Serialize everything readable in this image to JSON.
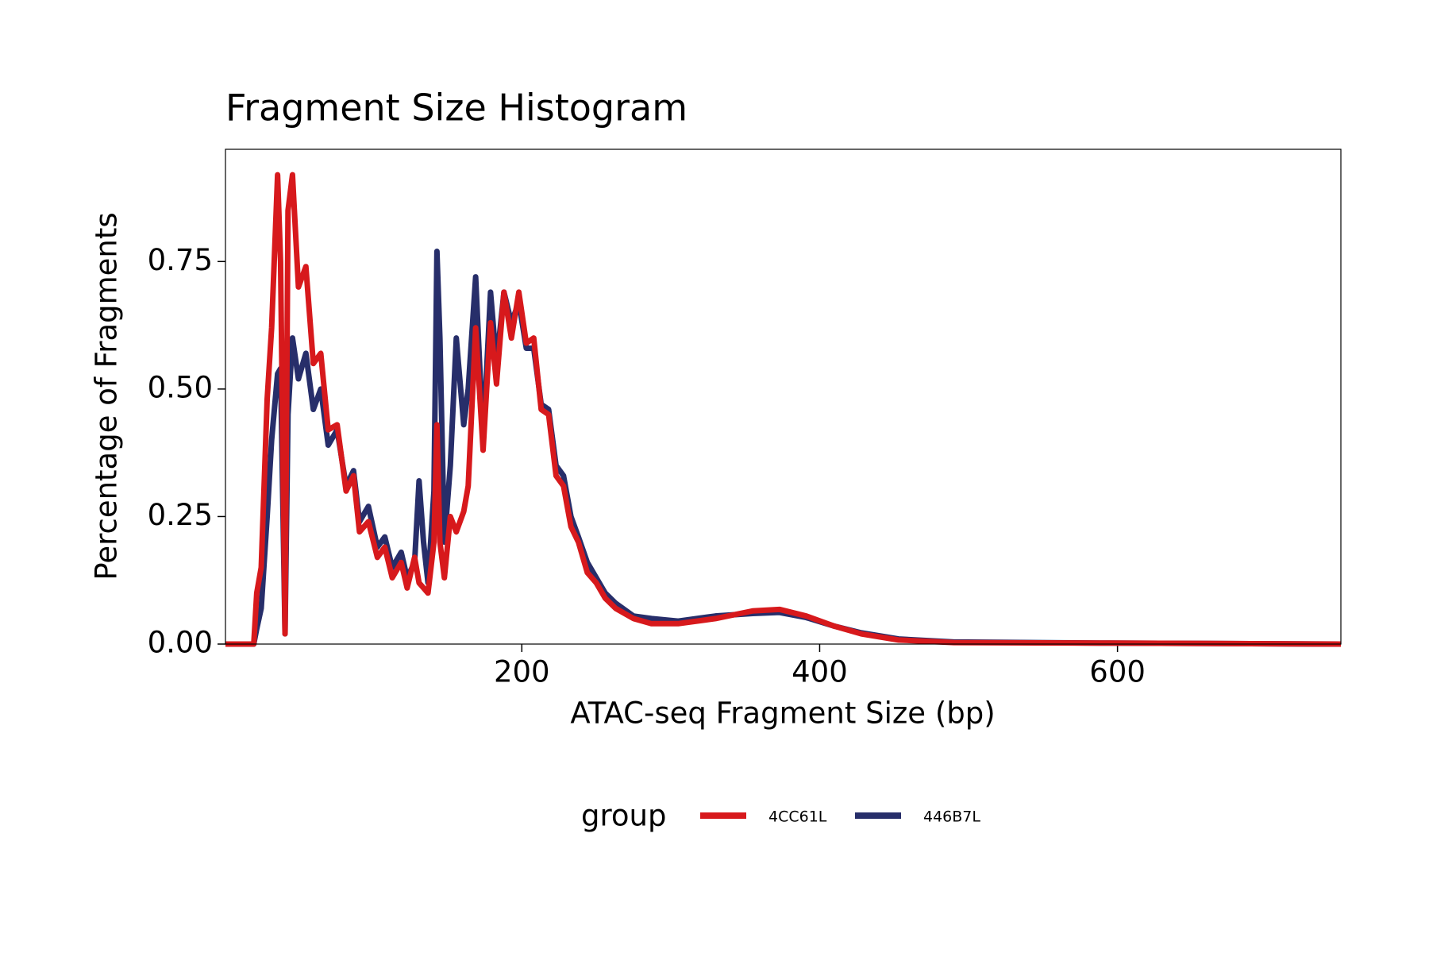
{
  "chart_data": {
    "type": "line",
    "title": "Fragment Size Histogram",
    "x_label": "ATAC-seq Fragment Size (bp)",
    "y_label": "Percentage of Fragments",
    "legend_title": "group",
    "legend_position": "bottom",
    "x": [
      1,
      20,
      22,
      25,
      29,
      32,
      36,
      38,
      41,
      43,
      46,
      50,
      55,
      60,
      65,
      70,
      76,
      82,
      87,
      91,
      97,
      103,
      108,
      113,
      119,
      123,
      128,
      131,
      134,
      137,
      141,
      143,
      145,
      148,
      152,
      156,
      161,
      164,
      169,
      174,
      179,
      183,
      188,
      193,
      198,
      203,
      208,
      213,
      218,
      223,
      228,
      233,
      238,
      244,
      250,
      256,
      263,
      275,
      287,
      305,
      330,
      355,
      373,
      391,
      410,
      428,
      453,
      490,
      588,
      750
    ],
    "series": [
      {
        "name": "4CC61L",
        "color": "#d7191c",
        "values": [
          0,
          0,
          0.1,
          0.15,
          0.48,
          0.62,
          0.92,
          0.75,
          0.02,
          0.85,
          0.92,
          0.7,
          0.74,
          0.55,
          0.57,
          0.42,
          0.43,
          0.3,
          0.33,
          0.22,
          0.24,
          0.17,
          0.19,
          0.13,
          0.16,
          0.11,
          0.17,
          0.12,
          0.11,
          0.1,
          0.2,
          0.43,
          0.2,
          0.13,
          0.25,
          0.22,
          0.26,
          0.31,
          0.62,
          0.38,
          0.63,
          0.51,
          0.69,
          0.6,
          0.69,
          0.59,
          0.6,
          0.46,
          0.45,
          0.33,
          0.31,
          0.23,
          0.2,
          0.14,
          0.12,
          0.09,
          0.07,
          0.05,
          0.04,
          0.04,
          0.05,
          0.065,
          0.068,
          0.055,
          0.035,
          0.02,
          0.008,
          0.003,
          0.002,
          0
        ]
      },
      {
        "name": "446B7L",
        "color": "#272e6a",
        "values": [
          0,
          0,
          0.03,
          0.07,
          0.25,
          0.4,
          0.53,
          0.54,
          0.02,
          0.45,
          0.6,
          0.52,
          0.57,
          0.46,
          0.5,
          0.39,
          0.42,
          0.31,
          0.34,
          0.24,
          0.27,
          0.19,
          0.21,
          0.15,
          0.18,
          0.13,
          0.16,
          0.32,
          0.2,
          0.12,
          0.3,
          0.77,
          0.6,
          0.2,
          0.35,
          0.6,
          0.43,
          0.5,
          0.72,
          0.4,
          0.69,
          0.55,
          0.69,
          0.63,
          0.67,
          0.58,
          0.58,
          0.47,
          0.46,
          0.35,
          0.33,
          0.25,
          0.21,
          0.16,
          0.13,
          0.1,
          0.08,
          0.055,
          0.05,
          0.045,
          0.055,
          0.06,
          0.062,
          0.052,
          0.035,
          0.022,
          0.01,
          0.004,
          0.002,
          0
        ]
      }
    ],
    "xlim": [
      1,
      750
    ],
    "ylim": [
      0,
      0.97
    ],
    "xticks": [
      200,
      400,
      600
    ],
    "yticks": [
      {
        "value": 0,
        "label": "0.00"
      },
      0.25,
      {
        "value": 0.5,
        "label": "0.50"
      },
      0.75
    ],
    "grid": false
  }
}
